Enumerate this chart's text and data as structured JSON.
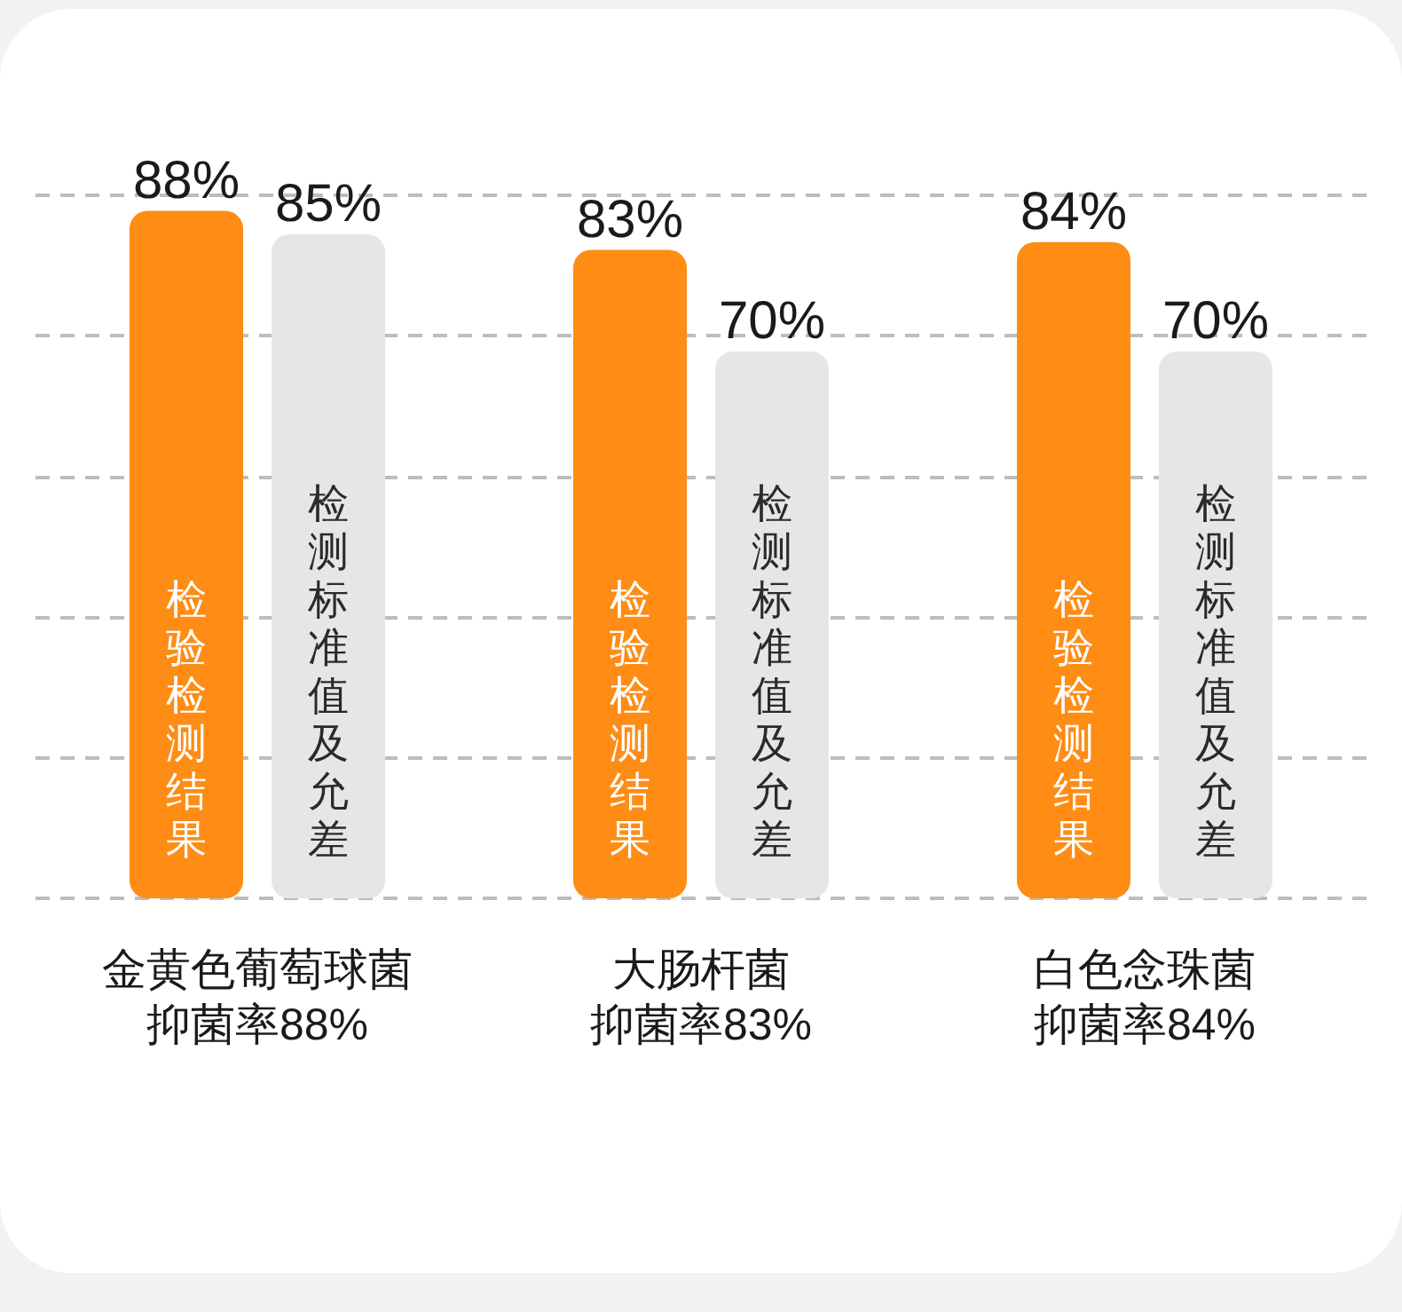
{
  "chart_data": {
    "type": "bar",
    "categories": [
      "金黄色葡萄球菌抑菌率88%",
      "大肠杆菌抑菌率83%",
      "白色念珠菌抑菌率84%"
    ],
    "series": [
      {
        "name": "检验检测结果",
        "color": "#ff8c14",
        "values": [
          88,
          83,
          84
        ],
        "value_labels": [
          "88%",
          "83%",
          "84%"
        ]
      },
      {
        "name": "检测标准值及允差",
        "color": "#e6e6e8",
        "values": [
          85,
          70,
          70
        ],
        "value_labels": [
          "85%",
          "70%",
          "70%"
        ]
      }
    ],
    "ylim": [
      0,
      90
    ],
    "yticks": [
      {
        "value": 0,
        "label": null
      },
      {
        "value": 18,
        "label": null
      },
      {
        "value": 36,
        "label": null
      },
      {
        "value": 54,
        "label": null
      },
      {
        "value": 72,
        "label": null
      },
      {
        "value": 90,
        "label": null
      }
    ],
    "grid": "y",
    "tick_labels": "x"
  }
}
